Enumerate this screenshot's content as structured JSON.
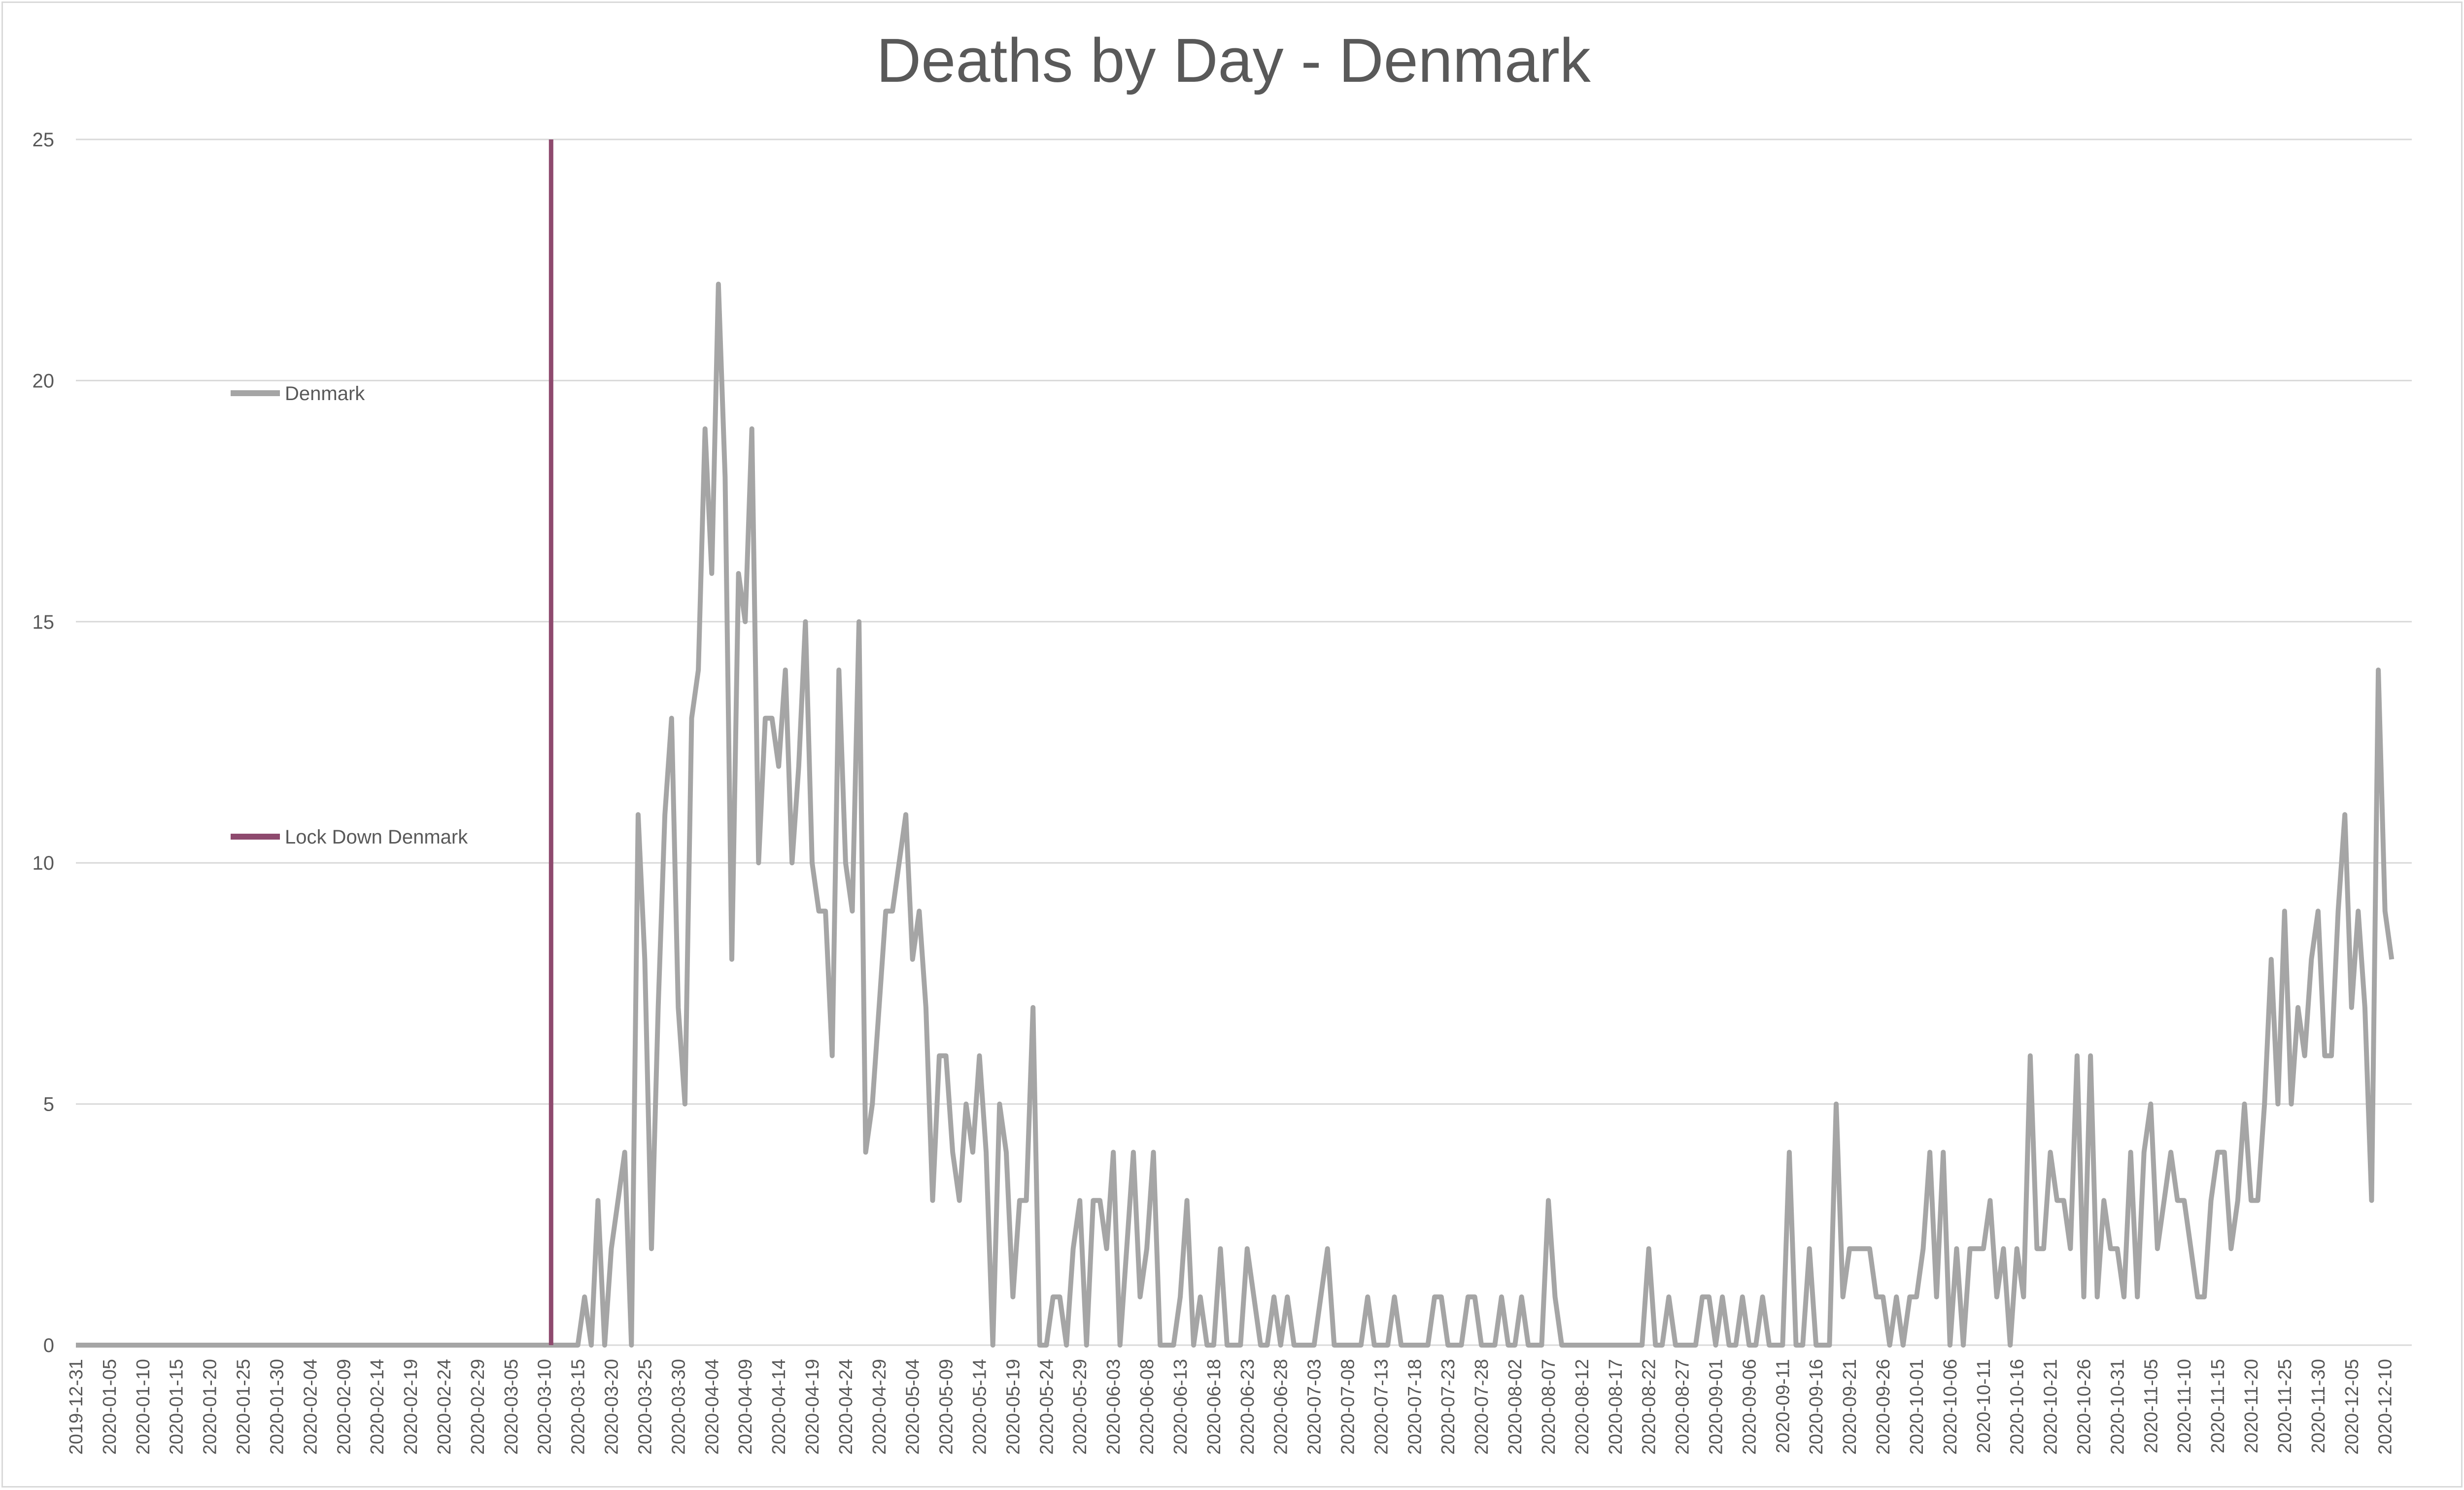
{
  "chart_data": {
    "type": "line",
    "title": "Deaths by Day - Denmark",
    "xlabel": "",
    "ylabel": "",
    "ylim": [
      0,
      25
    ],
    "yticks": [
      0,
      5,
      10,
      15,
      20,
      25
    ],
    "x_start": "2019-12-31",
    "x_end": "2020-12-14",
    "grid": true,
    "legend_placement": "left inside plot",
    "x_tick_labels": [
      "2019-12-31",
      "2020-01-05",
      "2020-01-10",
      "2020-01-15",
      "2020-01-20",
      "2020-01-25",
      "2020-01-30",
      "2020-02-04",
      "2020-02-09",
      "2020-02-14",
      "2020-02-19",
      "2020-02-24",
      "2020-02-29",
      "2020-03-05",
      "2020-03-10",
      "2020-03-15",
      "2020-03-20",
      "2020-03-25",
      "2020-03-30",
      "2020-04-04",
      "2020-04-09",
      "2020-04-14",
      "2020-04-19",
      "2020-04-24",
      "2020-04-29",
      "2020-05-04",
      "2020-05-09",
      "2020-05-14",
      "2020-05-19",
      "2020-05-24",
      "2020-05-29",
      "2020-06-03",
      "2020-06-08",
      "2020-06-13",
      "2020-06-18",
      "2020-06-23",
      "2020-06-28",
      "2020-07-03",
      "2020-07-08",
      "2020-07-13",
      "2020-07-18",
      "2020-07-23",
      "2020-07-28",
      "2020-08-02",
      "2020-08-07",
      "2020-08-12",
      "2020-08-17",
      "2020-08-22",
      "2020-08-27",
      "2020-09-01",
      "2020-09-06",
      "2020-09-11",
      "2020-09-16",
      "2020-09-21",
      "2020-09-26",
      "2020-10-01",
      "2020-10-06",
      "2020-10-11",
      "2020-10-16",
      "2020-10-21",
      "2020-10-26",
      "2020-10-31",
      "2020-11-05",
      "2020-11-10",
      "2020-11-15",
      "2020-11-20",
      "2020-11-25",
      "2020-11-30",
      "2020-12-05",
      "2020-12-10"
    ],
    "series": [
      {
        "name": "Denmark",
        "color": "#a5a5a5",
        "x_start": "2019-12-31",
        "values": [
          0,
          0,
          0,
          0,
          0,
          0,
          0,
          0,
          0,
          0,
          0,
          0,
          0,
          0,
          0,
          0,
          0,
          0,
          0,
          0,
          0,
          0,
          0,
          0,
          0,
          0,
          0,
          0,
          0,
          0,
          0,
          0,
          0,
          0,
          0,
          0,
          0,
          0,
          0,
          0,
          0,
          0,
          0,
          0,
          0,
          0,
          0,
          0,
          0,
          0,
          0,
          0,
          0,
          0,
          0,
          0,
          0,
          0,
          0,
          0,
          0,
          0,
          0,
          0,
          0,
          0,
          0,
          0,
          0,
          0,
          0,
          0,
          0,
          0,
          0,
          0,
          1,
          0,
          3,
          0,
          2,
          3,
          4,
          0,
          11,
          8,
          2,
          7,
          11,
          13,
          7,
          5,
          13,
          14,
          19,
          16,
          22,
          18,
          8,
          16,
          15,
          19,
          10,
          13,
          13,
          12,
          14,
          10,
          12,
          15,
          10,
          9,
          9,
          6,
          14,
          10,
          9,
          15,
          4,
          5,
          7,
          9,
          9,
          10,
          11,
          8,
          9,
          7,
          3,
          6,
          6,
          4,
          3,
          5,
          4,
          6,
          4,
          0,
          5,
          4,
          1,
          3,
          3,
          7,
          0,
          0,
          1,
          1,
          0,
          2,
          3,
          0,
          3,
          3,
          2,
          4,
          0,
          2,
          4,
          1,
          2,
          4,
          0,
          0,
          0,
          1,
          3,
          0,
          1,
          0,
          0,
          2,
          0,
          0,
          0,
          2,
          1,
          0,
          0,
          1,
          0,
          1,
          0,
          0,
          0,
          0,
          1,
          2,
          0,
          0,
          0,
          0,
          0,
          1,
          0,
          0,
          0,
          1,
          0,
          0,
          0,
          0,
          0,
          1,
          1,
          0,
          0,
          0,
          1,
          1,
          0,
          0,
          0,
          1,
          0,
          0,
          1,
          0,
          0,
          0,
          3,
          1,
          0,
          0,
          0,
          0,
          0,
          0,
          0,
          0,
          0,
          0,
          0,
          0,
          0,
          2,
          0,
          0,
          1,
          0,
          0,
          0,
          0,
          1,
          1,
          0,
          1,
          0,
          0,
          1,
          0,
          0,
          1,
          0,
          0,
          0,
          4,
          0,
          0,
          2,
          0,
          0,
          0,
          5,
          1,
          2,
          2,
          2,
          2,
          1,
          1,
          0,
          1,
          0,
          1,
          1,
          2,
          4,
          1,
          4,
          0,
          2,
          0,
          2,
          2,
          2,
          3,
          1,
          2,
          0,
          2,
          1,
          6,
          2,
          2,
          4,
          3,
          3,
          2,
          6,
          1,
          6,
          1,
          3,
          2,
          2,
          1,
          4,
          1,
          4,
          5,
          2,
          3,
          4,
          3,
          3,
          2,
          1,
          1,
          3,
          4,
          4,
          2,
          3,
          5,
          3,
          3,
          5,
          8,
          5,
          9,
          5,
          7,
          6,
          8,
          9,
          6,
          6,
          9,
          11,
          7,
          9,
          7,
          3,
          14,
          9,
          8
        ]
      },
      {
        "name": "Lock Down Denmark",
        "color": "#8e4a6e",
        "type": "vertical-line",
        "x": "2020-03-11",
        "y_range": [
          0,
          25
        ]
      }
    ]
  }
}
